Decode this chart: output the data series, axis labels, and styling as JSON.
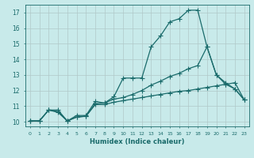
{
  "xlabel": "Humidex (Indice chaleur)",
  "ylabel": "",
  "bg_color": "#c8eaea",
  "grid_color": "#b0c8c8",
  "line_color": "#1a6b6b",
  "xlim": [
    -0.5,
    23.5
  ],
  "ylim": [
    9.7,
    17.5
  ],
  "xticks": [
    0,
    1,
    2,
    3,
    4,
    5,
    6,
    7,
    8,
    9,
    10,
    11,
    12,
    13,
    14,
    15,
    16,
    17,
    18,
    19,
    20,
    21,
    22,
    23
  ],
  "yticks": [
    10,
    11,
    12,
    13,
    14,
    15,
    16,
    17
  ],
  "line1_x": [
    0,
    1,
    2,
    3,
    4,
    5,
    6,
    7,
    8,
    9,
    10,
    11,
    12,
    13,
    14,
    15,
    16,
    17,
    18,
    19,
    20,
    21,
    22,
    23
  ],
  "line1_y": [
    10.05,
    10.05,
    10.75,
    10.75,
    10.05,
    10.4,
    10.4,
    11.3,
    11.2,
    11.6,
    12.8,
    12.8,
    12.8,
    14.8,
    15.5,
    16.4,
    16.6,
    17.15,
    17.15,
    14.8,
    13.0,
    12.5,
    12.1,
    11.4
  ],
  "line2_x": [
    0,
    1,
    2,
    3,
    4,
    5,
    6,
    7,
    8,
    9,
    10,
    11,
    12,
    13,
    14,
    15,
    16,
    17,
    18,
    19,
    20,
    21,
    22,
    23
  ],
  "line2_y": [
    10.05,
    10.05,
    10.75,
    10.6,
    10.05,
    10.3,
    10.35,
    11.15,
    11.2,
    11.45,
    11.55,
    11.75,
    12.0,
    12.35,
    12.6,
    12.9,
    13.1,
    13.4,
    13.6,
    14.8,
    13.0,
    12.4,
    12.1,
    11.4
  ],
  "line3_x": [
    0,
    1,
    2,
    3,
    4,
    5,
    6,
    7,
    8,
    9,
    10,
    11,
    12,
    13,
    14,
    15,
    16,
    17,
    18,
    19,
    20,
    21,
    22,
    23
  ],
  "line3_y": [
    10.05,
    10.05,
    10.75,
    10.65,
    10.05,
    10.3,
    10.35,
    11.1,
    11.1,
    11.25,
    11.35,
    11.45,
    11.55,
    11.65,
    11.75,
    11.85,
    11.95,
    12.0,
    12.1,
    12.2,
    12.3,
    12.4,
    12.5,
    11.4
  ]
}
